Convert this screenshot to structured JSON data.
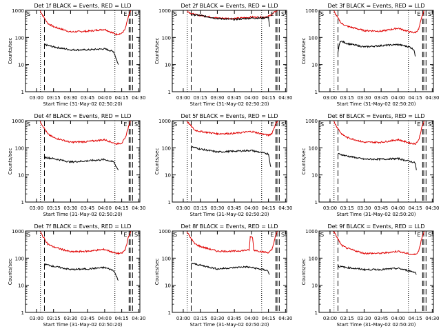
{
  "figure": {
    "xlabel": "Start Time (31-May-02 02:50:20)",
    "ylabel": "Counts/sec",
    "x_ticks": [
      "03:00",
      "03:15",
      "03:30",
      "03:45",
      "04:00",
      "04:15",
      "04:30"
    ],
    "y_ticks": [
      "1",
      "10",
      "100",
      "1000"
    ],
    "colors": {
      "events": "#000000",
      "lld": "#e00000"
    }
  },
  "chart_data": [
    {
      "type": "line",
      "title": "Det 1f BLACK = Events, RED = LLD",
      "yscale": "log",
      "ylim": [
        1,
        1000
      ],
      "xlim": [
        "02:50:20",
        "04:31:00"
      ],
      "markers": {
        "S_left": "S",
        "E": "E",
        "S_right": "S"
      },
      "dotted_lines": [
        "03:03:30",
        "04:09:00"
      ],
      "dashed_lines": [
        "03:07:00",
        "04:21:30",
        "04:22:30",
        "04:24:30"
      ],
      "series": [
        {
          "name": "Events",
          "x": [
            "03:07",
            "03:15",
            "03:30",
            "03:45",
            "04:00",
            "04:08",
            "04:12"
          ],
          "y": [
            55,
            45,
            35,
            35,
            38,
            30,
            10
          ]
        },
        {
          "name": "LLD",
          "x": [
            "03:03",
            "03:06",
            "03:10",
            "03:15",
            "03:30",
            "03:45",
            "04:00",
            "04:10",
            "04:15",
            "04:18",
            "04:21",
            "04:23"
          ],
          "y": [
            1000,
            600,
            330,
            250,
            160,
            170,
            200,
            130,
            140,
            200,
            600,
            1000
          ]
        }
      ]
    },
    {
      "type": "line",
      "title": "Det 2f BLACK = Events, RED = LLD",
      "yscale": "log",
      "ylim": [
        1,
        1000
      ],
      "xlim": [
        "02:50:20",
        "04:31:00"
      ],
      "markers": {
        "S_left": "S",
        "E": "E",
        "S_right": "S"
      },
      "dotted_lines": [
        "03:03:30",
        "04:09:00"
      ],
      "dashed_lines": [
        "03:07:00",
        "04:21:30",
        "04:22:30",
        "04:24:30"
      ],
      "series": [
        {
          "name": "Events",
          "x": [
            "03:07",
            "03:15",
            "03:30",
            "03:45",
            "04:00",
            "04:10",
            "04:15",
            "04:16"
          ],
          "y": [
            700,
            650,
            500,
            460,
            520,
            520,
            560,
            250
          ]
        },
        {
          "name": "LLD",
          "x": [
            "03:03",
            "03:06",
            "03:10",
            "03:15",
            "03:30",
            "03:45",
            "04:00",
            "04:10",
            "04:15",
            "04:18",
            "04:21",
            "04:23"
          ],
          "y": [
            1000,
            800,
            700,
            650,
            520,
            500,
            560,
            560,
            600,
            700,
            900,
            1000
          ]
        }
      ]
    },
    {
      "type": "line",
      "title": "Det 3f BLACK = Events, RED = LLD",
      "yscale": "log",
      "ylim": [
        1,
        1000
      ],
      "xlim": [
        "02:50:20",
        "04:31:00"
      ],
      "markers": {
        "S_left": "S",
        "E": "E",
        "S_right": "S"
      },
      "dotted_lines": [
        "03:03:30",
        "04:09:00"
      ],
      "dashed_lines": [
        "03:07:00",
        "04:21:30",
        "04:22:30",
        "04:24:30"
      ],
      "series": [
        {
          "name": "Events",
          "x": [
            "03:07",
            "03:09",
            "03:15",
            "03:30",
            "03:45",
            "04:00",
            "04:10",
            "04:14",
            "04:15"
          ],
          "y": [
            30,
            75,
            60,
            45,
            50,
            55,
            45,
            35,
            20
          ]
        },
        {
          "name": "LLD",
          "x": [
            "03:03",
            "03:06",
            "03:10",
            "03:15",
            "03:30",
            "03:45",
            "04:00",
            "04:10",
            "04:15",
            "04:18",
            "04:21",
            "04:23"
          ],
          "y": [
            1000,
            600,
            330,
            260,
            180,
            170,
            220,
            160,
            150,
            200,
            600,
            1000
          ]
        }
      ]
    },
    {
      "type": "line",
      "title": "Det 4f BLACK = Events, RED = LLD",
      "yscale": "log",
      "ylim": [
        1,
        1000
      ],
      "xlim": [
        "02:50:20",
        "04:31:00"
      ],
      "markers": {
        "S_left": "S",
        "E": "E",
        "S_right": "S"
      },
      "dotted_lines": [
        "03:03:30",
        "04:09:00"
      ],
      "dashed_lines": [
        "03:07:00",
        "04:21:30",
        "04:22:30",
        "04:24:30"
      ],
      "series": [
        {
          "name": "Events",
          "x": [
            "03:07",
            "03:15",
            "03:30",
            "03:45",
            "04:00",
            "04:08",
            "04:12"
          ],
          "y": [
            45,
            40,
            30,
            33,
            37,
            30,
            15
          ]
        },
        {
          "name": "LLD",
          "x": [
            "03:03",
            "03:06",
            "03:10",
            "03:15",
            "03:30",
            "03:45",
            "04:00",
            "04:10",
            "04:15",
            "04:18",
            "04:21",
            "04:23"
          ],
          "y": [
            1000,
            600,
            320,
            240,
            160,
            170,
            200,
            140,
            150,
            220,
            600,
            1000
          ]
        }
      ]
    },
    {
      "type": "line",
      "title": "Det 5f BLACK = Events, RED = LLD",
      "yscale": "log",
      "ylim": [
        1,
        1000
      ],
      "xlim": [
        "02:50:20",
        "04:31:00"
      ],
      "markers": {
        "S_left": "S",
        "E": "E",
        "S_right": "S"
      },
      "dotted_lines": [
        "03:03:30",
        "04:09:00"
      ],
      "dashed_lines": [
        "03:07:00",
        "04:21:30",
        "04:22:30",
        "04:24:30"
      ],
      "series": [
        {
          "name": "Events",
          "x": [
            "03:07",
            "03:15",
            "03:30",
            "03:45",
            "04:00",
            "04:10",
            "04:15",
            "04:17"
          ],
          "y": [
            110,
            90,
            70,
            75,
            80,
            65,
            60,
            20
          ]
        },
        {
          "name": "LLD",
          "x": [
            "03:03",
            "03:06",
            "03:10",
            "03:15",
            "03:30",
            "03:45",
            "04:00",
            "04:10",
            "04:15",
            "04:18",
            "04:21",
            "04:23"
          ],
          "y": [
            1000,
            700,
            450,
            400,
            330,
            340,
            400,
            320,
            290,
            340,
            700,
            1000
          ]
        }
      ]
    },
    {
      "type": "line",
      "title": "Det 6f BLACK = Events, RED = LLD",
      "yscale": "log",
      "ylim": [
        1,
        1000
      ],
      "xlim": [
        "02:50:20",
        "04:31:00"
      ],
      "markers": {
        "S_left": "S",
        "E": "E",
        "S_right": "S"
      },
      "dotted_lines": [
        "03:03:30",
        "04:09:00"
      ],
      "dashed_lines": [
        "03:07:00",
        "04:21:30",
        "04:22:30",
        "04:24:30"
      ],
      "series": [
        {
          "name": "Events",
          "x": [
            "03:07",
            "03:15",
            "03:30",
            "03:45",
            "04:00",
            "04:10",
            "04:15",
            "04:16"
          ],
          "y": [
            60,
            50,
            38,
            38,
            40,
            32,
            28,
            15
          ]
        },
        {
          "name": "LLD",
          "x": [
            "03:03",
            "03:06",
            "03:10",
            "03:15",
            "03:30",
            "03:45",
            "04:00",
            "04:10",
            "04:15",
            "04:18",
            "04:21",
            "04:23"
          ],
          "y": [
            1000,
            600,
            330,
            240,
            160,
            160,
            200,
            150,
            140,
            190,
            600,
            1000
          ]
        }
      ]
    },
    {
      "type": "line",
      "title": "Det 7f BLACK = Events, RED = LLD",
      "yscale": "log",
      "ylim": [
        1,
        1000
      ],
      "xlim": [
        "02:50:20",
        "04:31:00"
      ],
      "markers": {
        "S_left": "S",
        "E": "E",
        "S_right": "S"
      },
      "dotted_lines": [
        "03:03:30",
        "04:09:00"
      ],
      "dashed_lines": [
        "03:07:00",
        "04:21:30",
        "04:22:30",
        "04:24:30"
      ],
      "series": [
        {
          "name": "Events",
          "x": [
            "03:07",
            "03:15",
            "03:30",
            "03:45",
            "04:00",
            "04:08",
            "04:12"
          ],
          "y": [
            60,
            50,
            38,
            40,
            45,
            35,
            15
          ]
        },
        {
          "name": "LLD",
          "x": [
            "03:03",
            "03:06",
            "03:10",
            "03:15",
            "03:30",
            "03:45",
            "04:00",
            "04:10",
            "04:15",
            "04:18",
            "04:21",
            "04:23"
          ],
          "y": [
            1000,
            600,
            330,
            260,
            170,
            180,
            210,
            150,
            150,
            200,
            600,
            1000
          ]
        }
      ]
    },
    {
      "type": "line",
      "title": "Det 8f BLACK = Events, RED = LLD",
      "yscale": "log",
      "ylim": [
        1,
        1000
      ],
      "xlim": [
        "02:50:20",
        "04:31:00"
      ],
      "markers": {
        "S_left": "S",
        "E": "E",
        "S_right": "S"
      },
      "dotted_lines": [
        "03:03:30",
        "04:09:00"
      ],
      "dashed_lines": [
        "03:07:00",
        "04:21:30",
        "04:22:30",
        "04:24:30"
      ],
      "series": [
        {
          "name": "Events",
          "x": [
            "03:07",
            "03:15",
            "03:30",
            "03:45",
            "03:55",
            "04:00",
            "04:10",
            "04:14",
            "04:16"
          ],
          "y": [
            65,
            55,
            40,
            45,
            48,
            45,
            38,
            35,
            25
          ]
        },
        {
          "name": "LLD",
          "x": [
            "03:03",
            "03:06",
            "03:10",
            "03:15",
            "03:30",
            "03:45",
            "03:58",
            "03:59",
            "04:01",
            "04:02",
            "04:10",
            "04:15",
            "04:18",
            "04:21",
            "04:23"
          ],
          "y": [
            1000,
            600,
            340,
            270,
            180,
            180,
            200,
            600,
            600,
            200,
            170,
            160,
            200,
            600,
            1000
          ]
        }
      ]
    },
    {
      "type": "line",
      "title": "Det 9f BLACK = Events, RED = LLD",
      "yscale": "log",
      "ylim": [
        1,
        1000
      ],
      "xlim": [
        "02:50:20",
        "04:31:00"
      ],
      "markers": {
        "S_left": "S",
        "E": "E",
        "S_right": "S"
      },
      "dotted_lines": [
        "03:03:30",
        "04:09:00"
      ],
      "dashed_lines": [
        "03:07:00",
        "04:21:30",
        "04:22:30",
        "04:24:30"
      ],
      "series": [
        {
          "name": "Events",
          "x": [
            "03:07",
            "03:15",
            "03:30",
            "03:45",
            "04:00",
            "04:10",
            "04:15",
            "04:16"
          ],
          "y": [
            50,
            45,
            38,
            38,
            42,
            34,
            30,
            25
          ]
        },
        {
          "name": "LLD",
          "x": [
            "03:03",
            "03:06",
            "03:10",
            "03:15",
            "03:30",
            "03:45",
            "04:00",
            "04:10",
            "04:15",
            "04:18",
            "04:21",
            "04:23"
          ],
          "y": [
            1000,
            600,
            300,
            230,
            150,
            150,
            180,
            140,
            135,
            180,
            600,
            1000
          ]
        }
      ]
    }
  ]
}
